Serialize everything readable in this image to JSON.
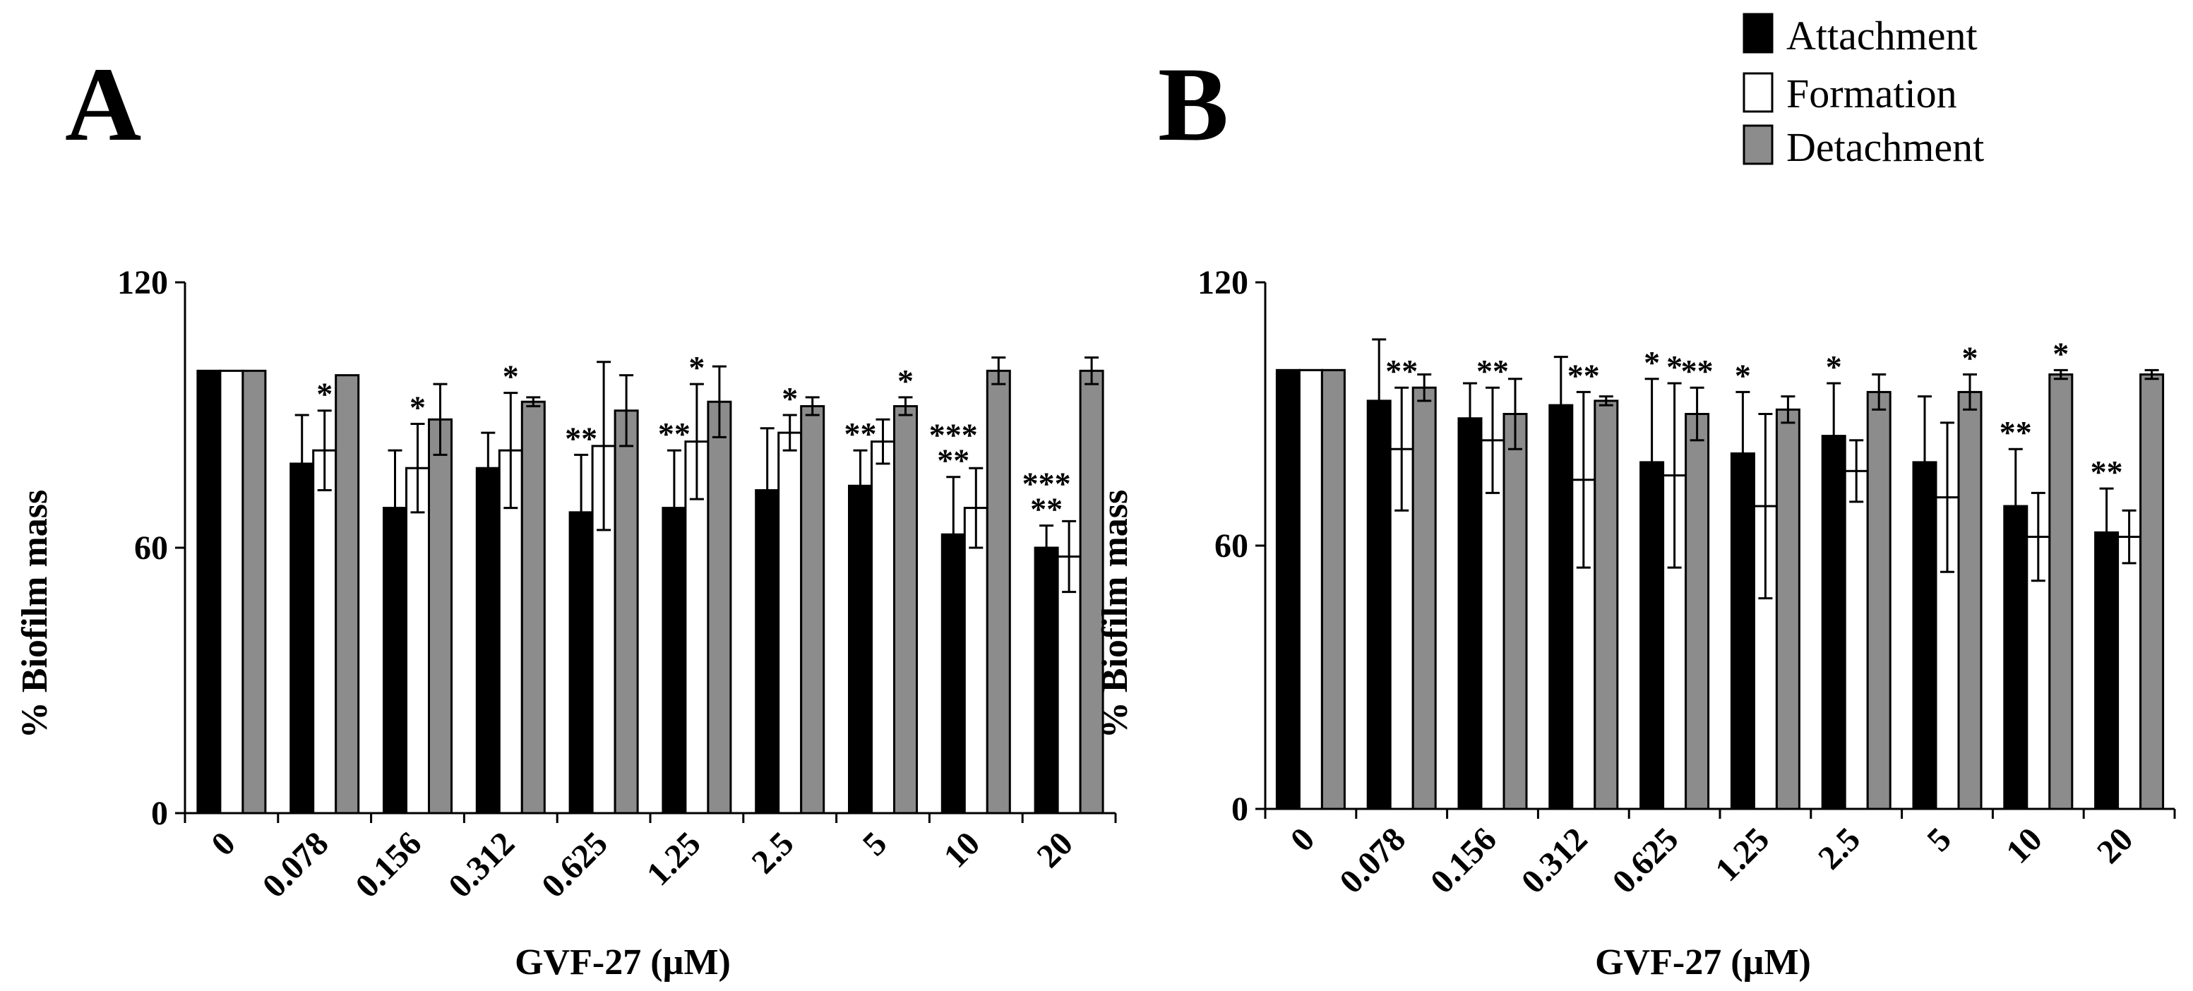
{
  "legend": [
    {
      "key": "attachment",
      "label": "Attachment",
      "color": "#000000"
    },
    {
      "key": "formation",
      "label": "Formation",
      "color": "#ffffff"
    },
    {
      "key": "detachment",
      "label": "Detachment",
      "color": "#8c8c8c"
    }
  ],
  "chart_data": [
    {
      "panel": "A",
      "type": "bar",
      "xlabel": "GVF-27 (µM)",
      "ylabel": "% Biofilm mass",
      "ylim": [
        0,
        120
      ],
      "yticks": [
        0,
        60,
        120
      ],
      "categories": [
        "0",
        "0.078",
        "0.156",
        "0.312",
        "0.625",
        "1.25",
        "2.5",
        "5",
        "10",
        "20"
      ],
      "series": [
        {
          "name": "Attachment",
          "values": [
            100,
            79,
            69,
            78,
            68,
            69,
            73,
            74,
            63,
            60
          ],
          "errors": [
            0,
            11,
            13,
            8,
            13,
            13,
            14,
            8,
            13,
            5
          ],
          "sig": [
            "",
            "",
            "",
            "",
            "**",
            "**",
            "",
            "**",
            "***\n**",
            "***\n**"
          ]
        },
        {
          "name": "Formation",
          "values": [
            100,
            82,
            78,
            82,
            83,
            84,
            86,
            84,
            69,
            58
          ],
          "errors": [
            0,
            9,
            10,
            13,
            19,
            13,
            4,
            5,
            9,
            8
          ],
          "sig": [
            "",
            "*",
            "*",
            "*",
            "",
            "*",
            "*",
            "",
            "",
            ""
          ]
        },
        {
          "name": "Detachment",
          "values": [
            100,
            99,
            89,
            93,
            91,
            93,
            92,
            92,
            100,
            100
          ],
          "errors": [
            0,
            0,
            8,
            1,
            8,
            8,
            2,
            2,
            3,
            3
          ],
          "sig": [
            "",
            "",
            "",
            "",
            "",
            "",
            "",
            "*",
            "",
            ""
          ]
        }
      ]
    },
    {
      "panel": "B",
      "type": "bar",
      "xlabel": "GVF-27 (µM)",
      "ylabel": "% Biofilm mass",
      "ylim": [
        0,
        120
      ],
      "yticks": [
        0,
        60,
        120
      ],
      "categories": [
        "0",
        "0.078",
        "0.156",
        "0.312",
        "0.625",
        "1.25",
        "2.5",
        "5",
        "10",
        "20"
      ],
      "series": [
        {
          "name": "Attachment",
          "values": [
            100,
            93,
            89,
            92,
            79,
            81,
            85,
            79,
            69,
            63
          ],
          "errors": [
            0,
            14,
            8,
            11,
            19,
            14,
            12,
            15,
            13,
            10
          ],
          "sig": [
            "",
            "",
            "",
            "",
            "*",
            "*",
            "*",
            "",
            "**",
            "**"
          ]
        },
        {
          "name": "Formation",
          "values": [
            100,
            82,
            84,
            75,
            76,
            69,
            77,
            71,
            62,
            62
          ],
          "errors": [
            0,
            14,
            12,
            20,
            21,
            21,
            7,
            17,
            10,
            6
          ],
          "sig": [
            "",
            "**",
            "**",
            "**",
            "*",
            "",
            "",
            "",
            "",
            ""
          ]
        },
        {
          "name": "Detachment",
          "values": [
            100,
            96,
            90,
            93,
            90,
            91,
            95,
            95,
            99,
            99
          ],
          "errors": [
            0,
            3,
            8,
            1,
            6,
            3,
            4,
            4,
            1,
            1
          ],
          "sig": [
            "",
            "",
            "",
            "",
            "**",
            "",
            "",
            "*",
            "*",
            ""
          ]
        }
      ]
    }
  ]
}
